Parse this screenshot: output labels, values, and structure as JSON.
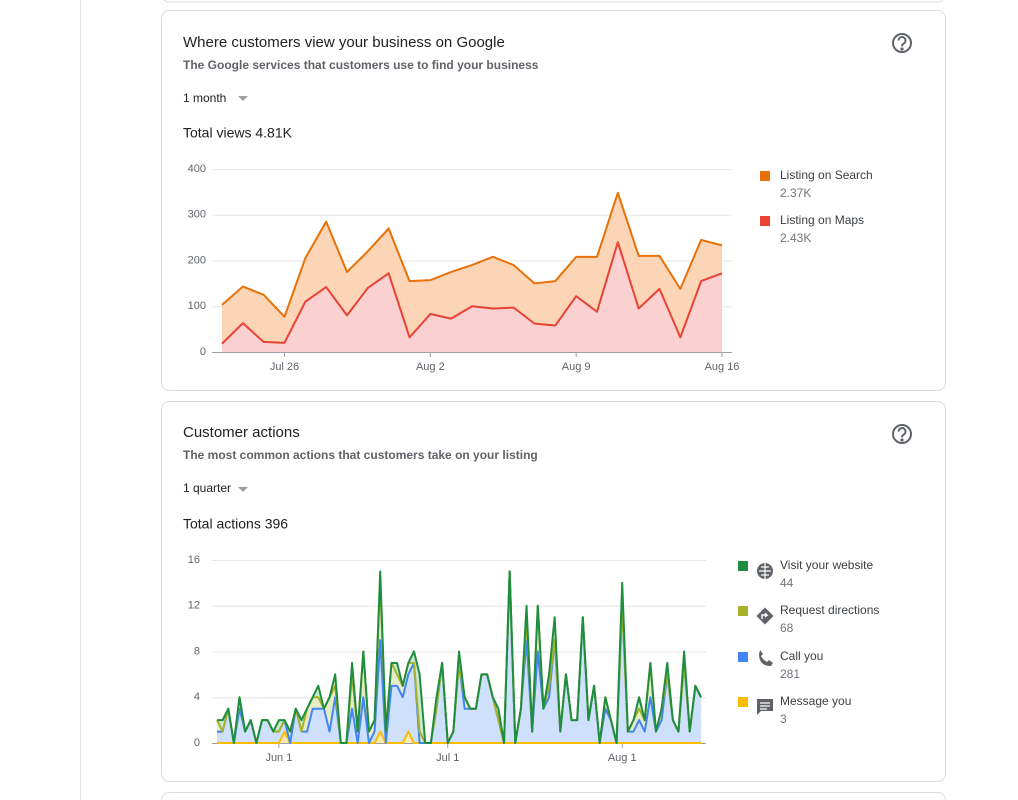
{
  "cards": [
    {
      "title": "Where customers view your business on Google",
      "subtitle": "The Google services that customers use to find your business",
      "period": "1 month",
      "total": "Total views 4.81K"
    },
    {
      "title": "Customer actions",
      "subtitle": "The most common actions that customers take on your listing",
      "period": "1 quarter",
      "total": "Total actions 396"
    }
  ],
  "chart_data": [
    {
      "type": "stacked-area",
      "categories": [
        null,
        null,
        null,
        "Jul 26",
        null,
        null,
        null,
        null,
        null,
        null,
        "Aug 2",
        null,
        null,
        null,
        null,
        null,
        null,
        "Aug 9",
        null,
        null,
        null,
        null,
        null,
        null,
        "Aug 16"
      ],
      "ylim": [
        0,
        400
      ],
      "yticks": [
        0,
        100,
        200,
        300,
        400
      ],
      "grid": true,
      "legend": "right",
      "series": [
        {
          "name": "Listing on Search",
          "total_label": "2.37K",
          "color": "#e8710a",
          "fill": "#fbd5b5",
          "values": [
            85,
            80,
            103,
            57,
            95,
            143,
            95,
            80,
            98,
            123,
            74,
            102,
            90,
            113,
            93,
            88,
            97,
            86,
            120,
            108,
            115,
            72,
            106,
            90,
            61
          ]
        },
        {
          "name": "Listing on Maps",
          "total_label": "2.43K",
          "color": "#e94235",
          "fill": "#fbd0d0",
          "values": [
            18,
            63,
            22,
            20,
            110,
            142,
            80,
            140,
            172,
            32,
            83,
            73,
            100,
            95,
            97,
            62,
            58,
            122,
            88,
            240,
            95,
            138,
            32,
            155,
            172
          ]
        }
      ]
    },
    {
      "type": "stacked-area",
      "categories": [
        null,
        null,
        null,
        null,
        null,
        null,
        null,
        null,
        null,
        null,
        null,
        "Jun 1",
        null,
        null,
        null,
        null,
        null,
        null,
        null,
        null,
        null,
        null,
        null,
        null,
        null,
        null,
        null,
        null,
        null,
        null,
        null,
        null,
        null,
        null,
        null,
        null,
        null,
        null,
        null,
        null,
        null,
        "Jul 1",
        null,
        null,
        null,
        null,
        null,
        null,
        null,
        null,
        null,
        null,
        null,
        null,
        null,
        null,
        null,
        null,
        null,
        null,
        null,
        null,
        null,
        null,
        null,
        null,
        null,
        null,
        null,
        null,
        null,
        null,
        "Aug 1",
        null,
        null,
        null,
        null,
        null,
        null,
        null,
        null,
        null,
        null,
        null,
        null,
        null,
        null
      ],
      "ylim": [
        0,
        16
      ],
      "yticks": [
        0,
        4,
        8,
        12,
        16
      ],
      "grid": true,
      "legend": "right",
      "series": [
        {
          "name": "Visit your website",
          "total_label": 44,
          "color": "#1e8e3e",
          "fill": "#cde8d3",
          "values": [
            0,
            1,
            0,
            0,
            0,
            0,
            0,
            0,
            0,
            0,
            0,
            1,
            0,
            0,
            0,
            1,
            0,
            0,
            1,
            0,
            0,
            1,
            0,
            0,
            1,
            0,
            0,
            0,
            0,
            1,
            0,
            0,
            1,
            0,
            0,
            1,
            5,
            0,
            0,
            1,
            0,
            0,
            0,
            1,
            0,
            0,
            0,
            0,
            0,
            0,
            1,
            0,
            0,
            0,
            0,
            1,
            0,
            0,
            0,
            1,
            2,
            0,
            0,
            0,
            0,
            0,
            0,
            0,
            0,
            0,
            0,
            0,
            2,
            0,
            0,
            1,
            0,
            0,
            0,
            0,
            1,
            0,
            0,
            1,
            0,
            0,
            0
          ]
        },
        {
          "name": "Request directions",
          "total_label": 68,
          "color": "#a8b228",
          "fill": "#e8ebc8",
          "values": [
            1,
            0,
            0,
            0,
            1,
            0,
            0,
            0,
            0,
            0,
            0,
            0,
            0,
            1,
            0,
            0,
            2,
            1,
            1,
            0,
            3,
            1,
            0,
            0,
            3,
            1,
            4,
            1,
            1,
            5,
            1,
            2,
            1,
            1,
            1,
            0,
            1,
            0,
            0,
            0,
            0,
            0,
            0,
            0,
            1,
            0,
            0,
            0,
            0,
            0,
            0,
            0,
            0,
            0,
            0,
            2,
            0,
            4,
            0,
            1,
            0,
            0,
            0,
            0,
            0,
            0,
            0,
            0,
            0,
            1,
            0,
            0,
            0,
            0,
            1,
            1,
            1,
            3,
            0,
            1,
            0,
            0,
            0,
            0,
            0,
            0,
            0
          ]
        },
        {
          "name": "Call you",
          "total_label": 281,
          "color": "#4285f4",
          "fill": "#cfe0fc",
          "values": [
            1,
            1,
            3,
            0,
            3,
            1,
            2,
            0,
            2,
            2,
            1,
            1,
            1,
            0,
            3,
            1,
            1,
            3,
            3,
            3,
            1,
            4,
            0,
            0,
            3,
            0,
            4,
            0,
            1,
            8,
            0,
            5,
            5,
            4,
            5,
            7,
            0,
            0,
            0,
            3,
            7,
            0,
            1,
            7,
            3,
            3,
            3,
            6,
            6,
            4,
            2,
            0,
            15,
            0,
            3,
            9,
            1,
            8,
            3,
            4,
            9,
            1,
            6,
            2,
            2,
            11,
            2,
            5,
            0,
            3,
            2,
            0,
            12,
            1,
            1,
            2,
            1,
            4,
            1,
            2,
            6,
            2,
            1,
            7,
            1,
            5,
            4
          ]
        },
        {
          "name": "Message you",
          "total_label": 3,
          "color": "#fbbc04",
          "fill": "#fdeab0",
          "values": [
            0,
            0,
            0,
            0,
            0,
            0,
            0,
            0,
            0,
            0,
            0,
            0,
            1,
            0,
            0,
            0,
            0,
            0,
            0,
            0,
            0,
            0,
            0,
            0,
            0,
            0,
            0,
            0,
            0,
            1,
            0,
            0,
            0,
            0,
            1,
            0,
            0,
            0,
            0,
            0,
            0,
            0,
            0,
            0,
            0,
            0,
            0,
            0,
            0,
            0,
            0,
            0,
            0,
            0,
            0,
            0,
            0,
            0,
            0,
            0,
            0,
            0,
            0,
            0,
            0,
            0,
            0,
            0,
            0,
            0,
            0,
            0,
            0,
            0,
            0,
            0,
            0,
            0,
            0,
            0,
            0,
            0,
            0,
            0,
            0,
            0,
            0
          ]
        }
      ]
    }
  ]
}
